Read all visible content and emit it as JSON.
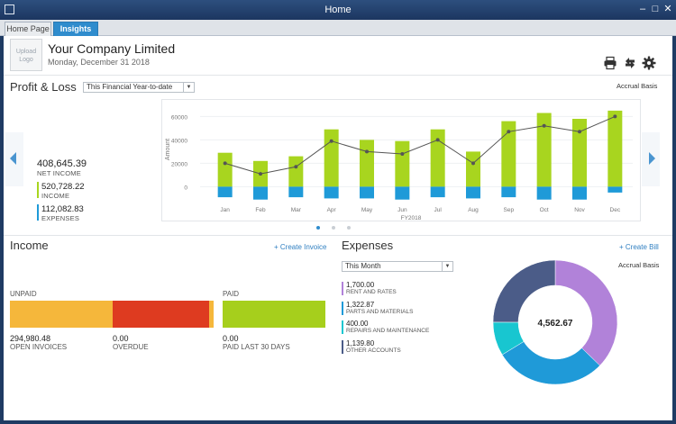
{
  "window": {
    "title": "Home"
  },
  "tabs": [
    {
      "label": "Home Page"
    },
    {
      "label": "Insights"
    }
  ],
  "header": {
    "logo_placeholder": "Upload Logo",
    "company_name": "Your Company Limited",
    "date": "Monday, December 31 2018"
  },
  "profit_loss": {
    "title": "Profit & Loss",
    "period": "This Financial Year-to-date",
    "basis": "Accrual Basis",
    "net_income_value": "408,645.39",
    "net_income_label": "NET INCOME",
    "income_value": "520,728.22",
    "income_label": "INCOME",
    "expenses_value": "112,082.83",
    "expenses_label": "EXPENSES",
    "colors": {
      "income": "#a8d51f",
      "expenses": "#1f9ad8",
      "net": "#555555"
    }
  },
  "chart_data": {
    "type": "bar",
    "categories": [
      "Jan",
      "Feb",
      "Mar",
      "Apr",
      "May",
      "Jun",
      "Jul",
      "Aug",
      "Sep",
      "Oct",
      "Nov",
      "Dec"
    ],
    "series": [
      {
        "name": "INCOME",
        "values": [
          29000,
          22000,
          26000,
          49000,
          40000,
          39000,
          49000,
          30000,
          56000,
          63000,
          58000,
          65000
        ]
      },
      {
        "name": "EXPENSES",
        "values": [
          -9000,
          -11000,
          -9000,
          -10000,
          -10000,
          -11000,
          -9000,
          -10000,
          -9000,
          -11000,
          -11000,
          -5000
        ]
      },
      {
        "name": "NET INCOME",
        "values": [
          20000,
          11000,
          17000,
          39000,
          30000,
          28000,
          40000,
          20000,
          47000,
          52000,
          47000,
          60000
        ]
      }
    ],
    "xlabel": "FY2018",
    "ylabel": "Amount",
    "yticks": [
      "60000",
      "40000",
      "20000",
      "0"
    ],
    "ylim": [
      -12000,
      68000
    ]
  },
  "income": {
    "title": "Income",
    "create_link": "+ Create Invoice",
    "unpaid_label": "UNPAID",
    "paid_label": "PAID",
    "open_value": "294,980.48",
    "open_label": "OPEN INVOICES",
    "overdue_value": "0.00",
    "overdue_label": "OVERDUE",
    "paid_value": "0.00",
    "paid_last_label": "PAID LAST 30 DAYS",
    "colors": {
      "open": "#f5b73b",
      "overdue": "#de3b20",
      "paid": "#a6cf1c"
    }
  },
  "expenses": {
    "title": "Expenses",
    "create_link": "+ Create Bill",
    "period": "This Month",
    "basis": "Accrual Basis",
    "total": "4,562.67",
    "items": [
      {
        "value": "1,700.00",
        "label": "RENT AND RATES",
        "color": "#b182d9",
        "amount": 1700.0
      },
      {
        "value": "1,322.87",
        "label": "PARTS AND MATERIALS",
        "color": "#1f9ad8",
        "amount": 1322.87
      },
      {
        "value": "400.00",
        "label": "REPAIRS AND MAINTENANCE",
        "color": "#18c6d0",
        "amount": 400.0
      },
      {
        "value": "1,139.80",
        "label": "OTHER ACCOUNTS",
        "color": "#4b5c88",
        "amount": 1139.8
      }
    ]
  }
}
